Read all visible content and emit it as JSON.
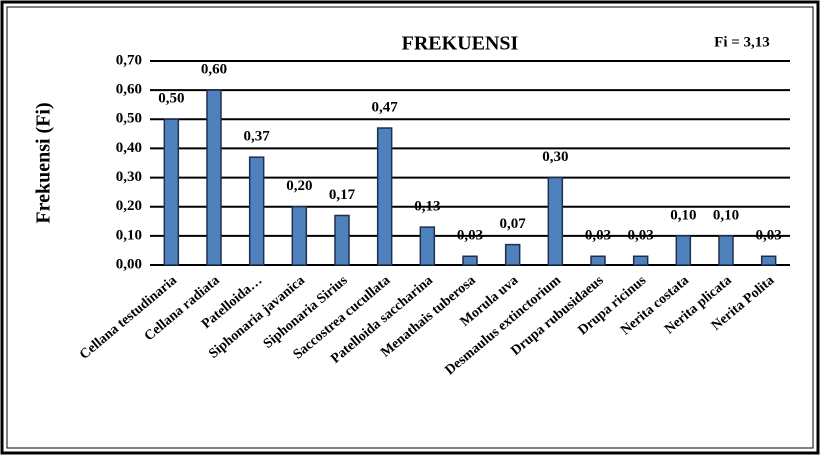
{
  "chart_data": {
    "type": "bar",
    "title": "FREKUENSI",
    "annotation": "Fi = 3,13",
    "ylabel": "Frekuensi (Fi)",
    "categories": [
      "Cellana testudinaria",
      "Cellana radiata",
      "Patelloida…",
      "Siphonaria javanica",
      "Siphonaria Sirius",
      "Saccostrea cucullata",
      "Patelloida saccharina",
      "Menathais tuberosa",
      "Morula uva",
      "Desmaulus extinctorium",
      "Drupa rubusidaeus",
      "Drupa ricinus",
      "Nerita costata",
      "Nerita plicata",
      "Nerita Polita"
    ],
    "values": [
      0.5,
      0.6,
      0.37,
      0.2,
      0.17,
      0.47,
      0.13,
      0.03,
      0.07,
      0.3,
      0.03,
      0.03,
      0.1,
      0.1,
      0.03
    ],
    "value_labels": [
      "0,50",
      "0,60",
      "0,37",
      "0,20",
      "0,17",
      "0,47",
      "0,13",
      "0,03",
      "0,07",
      "0,30",
      "0,03",
      "0,03",
      "0,10",
      "0,10",
      "0,03"
    ],
    "color": "#4f81bd",
    "ylim": [
      0,
      0.7
    ],
    "yticks": [
      {
        "value": 0,
        "label": "0,00"
      },
      {
        "value": 0.1,
        "label": "0,10"
      },
      {
        "value": 0.2,
        "label": "0,20"
      },
      {
        "value": 0.3,
        "label": "0,30"
      },
      {
        "value": 0.4,
        "label": "0,40"
      },
      {
        "value": 0.5,
        "label": "0,50"
      },
      {
        "value": 0.6,
        "label": "0,60"
      },
      {
        "value": 0.7,
        "label": "0,70"
      }
    ],
    "grid": true
  }
}
